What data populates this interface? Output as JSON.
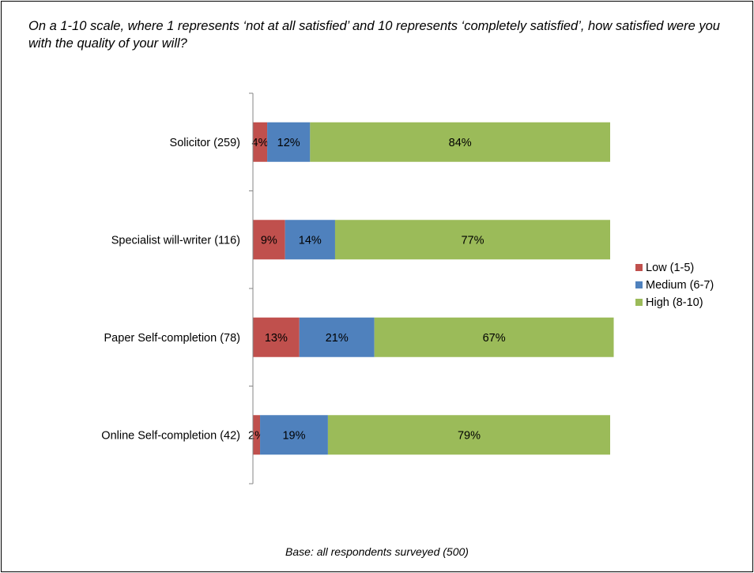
{
  "title": "On a 1-10 scale, where 1 represents ‘not at all satisfied’ and 10 represents ‘completely satisfied’, how satisfied were you with the quality of your will?",
  "footnote": "Base: all respondents surveyed (500)",
  "chart_data": {
    "type": "bar",
    "orientation": "horizontal",
    "stacked": true,
    "categories": [
      "Solicitor (259)",
      "Specialist will-writer (116)",
      "Paper Self-completion (78)",
      "Online Self-completion (42)"
    ],
    "series": [
      {
        "name": "Low (1-5)",
        "color": "#c0504d",
        "values": [
          4,
          9,
          13,
          2
        ],
        "labels": [
          "4%",
          "9%",
          "13%",
          "2%"
        ]
      },
      {
        "name": "Medium (6-7)",
        "color": "#4f81bd",
        "values": [
          12,
          14,
          21,
          19
        ],
        "labels": [
          "12%",
          "14%",
          "21%",
          "19%"
        ]
      },
      {
        "name": "High (8-10)",
        "color": "#9bbb59",
        "values": [
          84,
          77,
          67,
          79
        ],
        "labels": [
          "84%",
          "77%",
          "67%",
          "79%"
        ]
      }
    ],
    "xlim": [
      0,
      100
    ],
    "grid": false,
    "legend_position": "right"
  }
}
